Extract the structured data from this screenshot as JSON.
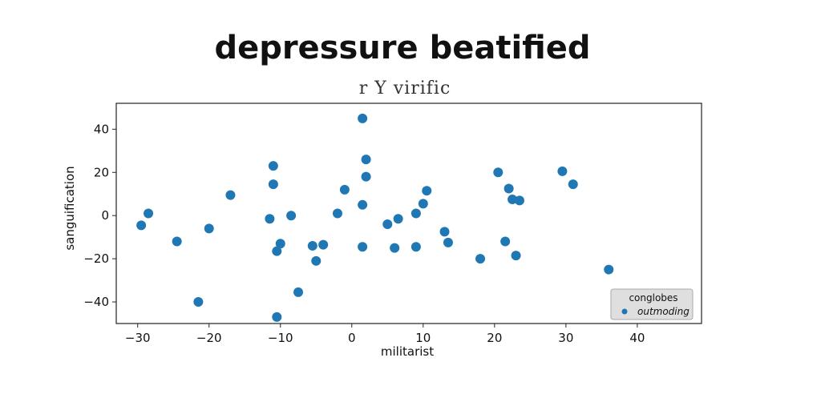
{
  "chart_data": {
    "type": "scatter",
    "title": "depressure beatified",
    "subtitle": "r Y virific",
    "xlabel": "militarist",
    "ylabel": "sanguification",
    "xlim": [
      -33,
      49
    ],
    "ylim": [
      -50,
      52
    ],
    "xticks": [
      -30,
      -20,
      -10,
      0,
      10,
      20,
      30,
      40
    ],
    "yticks": [
      -40,
      -20,
      0,
      20,
      40
    ],
    "tick_labels_x": [
      "−30",
      "−20",
      "−10",
      "0",
      "10",
      "20",
      "30",
      "40"
    ],
    "tick_labels_y": [
      "−40",
      "−20",
      "0",
      "20",
      "40"
    ],
    "grid": false,
    "legend": {
      "title": "conglobes",
      "entries": [
        "outmoding"
      ],
      "placement": "bottom-right"
    },
    "series": [
      {
        "name": "outmoding",
        "color": "#1f77b4",
        "points": [
          [
            -29.5,
            -4.5
          ],
          [
            -28.5,
            1
          ],
          [
            -24.5,
            -12
          ],
          [
            -21.5,
            -40
          ],
          [
            -20,
            -6
          ],
          [
            -17,
            9.5
          ],
          [
            -11.5,
            -1.5
          ],
          [
            -11,
            23
          ],
          [
            -11,
            14.5
          ],
          [
            -10.5,
            -16.5
          ],
          [
            -10.5,
            -47
          ],
          [
            -10,
            -13
          ],
          [
            -8.5,
            0
          ],
          [
            -7.5,
            -35.5
          ],
          [
            -5.5,
            -14
          ],
          [
            -5,
            -21
          ],
          [
            -4,
            -13.5
          ],
          [
            -2,
            1
          ],
          [
            -1,
            12
          ],
          [
            1.5,
            45
          ],
          [
            1.5,
            -14.5
          ],
          [
            1.5,
            5
          ],
          [
            2,
            26
          ],
          [
            2,
            18
          ],
          [
            5,
            -4
          ],
          [
            6,
            -15
          ],
          [
            6.5,
            -1.5
          ],
          [
            9,
            -14.5
          ],
          [
            9,
            1
          ],
          [
            10,
            5.5
          ],
          [
            10.5,
            11.5
          ],
          [
            13,
            -7.5
          ],
          [
            13.5,
            -12.5
          ],
          [
            18,
            -20
          ],
          [
            20.5,
            20
          ],
          [
            21.5,
            -12
          ],
          [
            22,
            12.5
          ],
          [
            22.5,
            7.5
          ],
          [
            23.5,
            7
          ],
          [
            23,
            -18.5
          ],
          [
            29.5,
            20.5
          ],
          [
            31,
            14.5
          ],
          [
            36,
            -25
          ]
        ]
      }
    ]
  }
}
